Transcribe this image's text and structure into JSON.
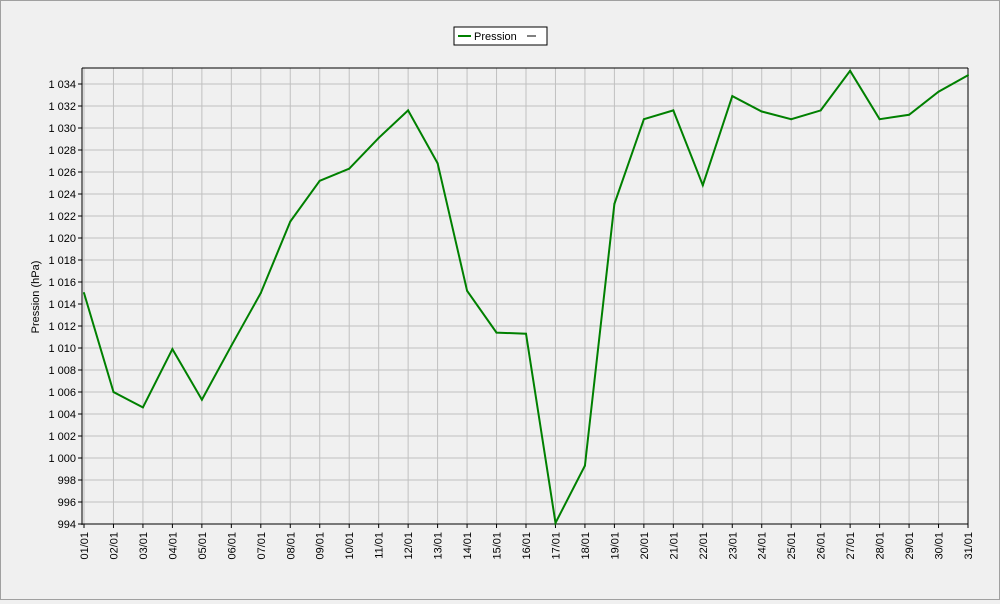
{
  "chart_data": {
    "type": "line",
    "ylabel": "Pression (hPa)",
    "legend_position": "top-center",
    "grid": true,
    "ylim": [
      994,
      1035
    ],
    "y_ticks": [
      994,
      996,
      998,
      1000,
      1002,
      1004,
      1006,
      1008,
      1010,
      1012,
      1014,
      1016,
      1018,
      1020,
      1022,
      1024,
      1026,
      1028,
      1030,
      1032,
      1034
    ],
    "y_tick_labels": [
      "994",
      "996",
      "998",
      "1 000",
      "1 002",
      "1 004",
      "1 006",
      "1 008",
      "1 010",
      "1 012",
      "1 014",
      "1 016",
      "1 018",
      "1 020",
      "1 022",
      "1 024",
      "1 026",
      "1 028",
      "1 030",
      "1 032",
      "1 034"
    ],
    "categories": [
      "01/01",
      "02/01",
      "03/01",
      "04/01",
      "05/01",
      "06/01",
      "07/01",
      "08/01",
      "09/01",
      "10/01",
      "11/01",
      "12/01",
      "13/01",
      "14/01",
      "15/01",
      "16/01",
      "17/01",
      "18/01",
      "19/01",
      "20/01",
      "21/01",
      "22/01",
      "23/01",
      "24/01",
      "25/01",
      "26/01",
      "27/01",
      "28/01",
      "29/01",
      "30/01",
      "31/01"
    ],
    "series": [
      {
        "name": "Pression",
        "color": "#008000",
        "values": [
          1015.0,
          1006.0,
          1004.6,
          1009.9,
          1005.3,
          1010.2,
          1015.0,
          1021.5,
          1025.2,
          1026.3,
          1029.1,
          1031.6,
          1026.8,
          1015.2,
          1011.4,
          1011.3,
          994.1,
          999.3,
          1023.1,
          1030.8,
          1031.6,
          1024.8,
          1032.9,
          1031.5,
          1030.8,
          1031.6,
          1035.2,
          1030.8,
          1031.2,
          1033.3,
          1034.8
        ]
      }
    ]
  }
}
